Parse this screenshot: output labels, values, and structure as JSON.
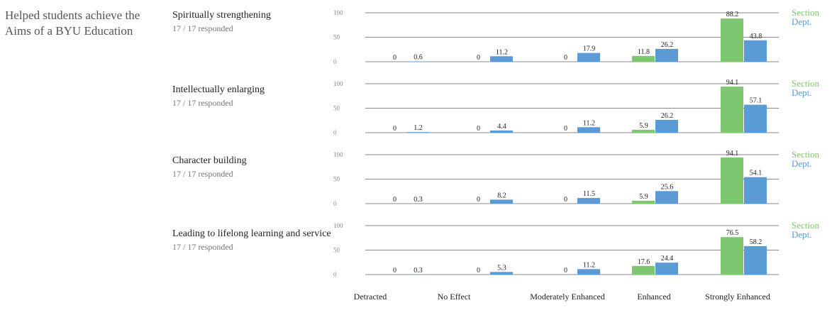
{
  "heading": "Helped students achieve the Aims of a BYU Education",
  "colors": {
    "section": "#7dc86e",
    "dept": "#5b9bd5"
  },
  "chart_data": {
    "type": "bar",
    "categories": [
      "Detracted",
      "No Effect",
      "Moderately Enhanced",
      "Enhanced",
      "Strongly Enhanced"
    ],
    "ylim": [
      0,
      100
    ],
    "yticks": [
      "0",
      "50",
      "100"
    ],
    "legend": [
      "Section",
      "Dept."
    ],
    "panels": [
      {
        "title": "Spiritually strengthening",
        "responded": "17 / 17 responded",
        "series": [
          {
            "name": "Section",
            "values": [
              0,
              0,
              0,
              11.8,
              88.2
            ]
          },
          {
            "name": "Dept.",
            "values": [
              0.6,
              11.2,
              17.9,
              26.2,
              43.8
            ]
          }
        ]
      },
      {
        "title": "Intellectually enlarging",
        "responded": "17 / 17 responded",
        "series": [
          {
            "name": "Section",
            "values": [
              0,
              0,
              0,
              5.9,
              94.1
            ]
          },
          {
            "name": "Dept.",
            "values": [
              1.2,
              4.4,
              11.2,
              26.2,
              57.1
            ]
          }
        ]
      },
      {
        "title": "Character building",
        "responded": "17 / 17 responded",
        "series": [
          {
            "name": "Section",
            "values": [
              0,
              0,
              0,
              5.9,
              94.1
            ]
          },
          {
            "name": "Dept.",
            "values": [
              0.3,
              8.2,
              11.5,
              25.6,
              54.1
            ]
          }
        ]
      },
      {
        "title": "Leading to lifelong learning and service",
        "responded": "17 / 17 responded",
        "series": [
          {
            "name": "Section",
            "values": [
              0,
              0,
              0,
              17.6,
              76.5
            ]
          },
          {
            "name": "Dept.",
            "values": [
              0.3,
              5.3,
              11.2,
              24.4,
              58.2
            ]
          }
        ]
      }
    ]
  }
}
